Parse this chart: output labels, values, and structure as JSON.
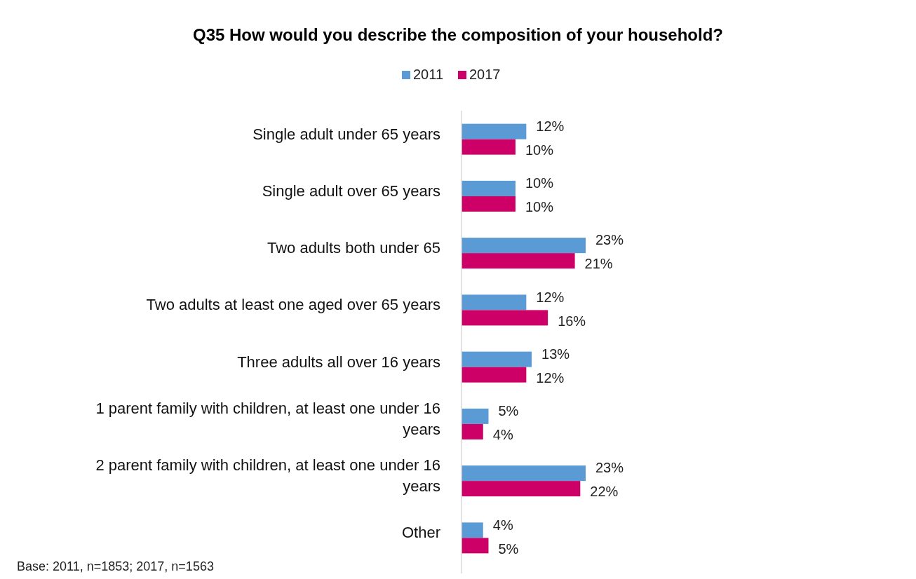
{
  "chart_data": {
    "type": "bar",
    "orientation": "horizontal",
    "title": "Q35 How would you describe the composition of your household?",
    "categories": [
      "Single adult under 65 years",
      "Single adult over 65 years",
      "Two adults both under 65",
      "Two adults at least one aged over 65 years",
      "Three adults all over 16 years",
      "1 parent family with children, at least one under 16 years",
      "2 parent family with children, at least one under 16 years",
      "Other"
    ],
    "series": [
      {
        "name": "2011",
        "color": "#5b9bd5",
        "values": [
          12,
          10,
          23,
          12,
          13,
          5,
          23,
          4
        ],
        "value_labels": [
          "12%",
          "10%",
          "23%",
          "12%",
          "13%",
          "5%",
          "23%",
          "4%"
        ]
      },
      {
        "name": "2017",
        "color": "#cc0066",
        "values": [
          10,
          10,
          21,
          16,
          12,
          4,
          22,
          5
        ],
        "value_labels": [
          "10%",
          "10%",
          "21%",
          "16%",
          "12%",
          "4%",
          "22%",
          "5%"
        ]
      }
    ],
    "legend": "top",
    "annotations": [
      "Base: 2011, n=1853; 2017, n=1563"
    ]
  }
}
